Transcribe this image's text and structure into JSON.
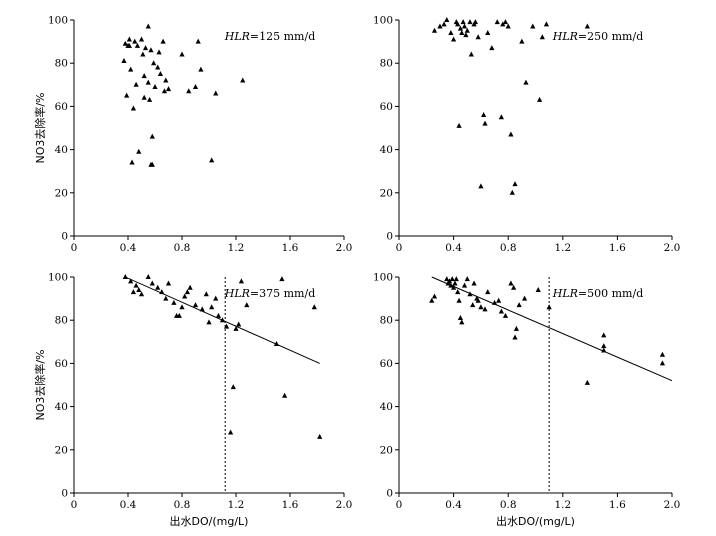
{
  "chart_data": [
    {
      "type": "scatter",
      "annotation": {
        "italic": "HLR",
        "rest": "=125 mm/d"
      },
      "ylabel": "NO3去除率/%",
      "xlabel": "",
      "xlim": [
        0,
        2.0
      ],
      "ylim": [
        0,
        100
      ],
      "x_ticks": [
        "0",
        "0.4",
        "0.8",
        "1.2",
        "1.6",
        "2.0"
      ],
      "y_ticks": [
        "0",
        "20",
        "40",
        "60",
        "80",
        "100"
      ],
      "points": [
        [
          0.37,
          81
        ],
        [
          0.38,
          89
        ],
        [
          0.39,
          65
        ],
        [
          0.4,
          88
        ],
        [
          0.41,
          91
        ],
        [
          0.41,
          88
        ],
        [
          0.42,
          77
        ],
        [
          0.43,
          34
        ],
        [
          0.44,
          59
        ],
        [
          0.45,
          90
        ],
        [
          0.46,
          70
        ],
        [
          0.47,
          88
        ],
        [
          0.48,
          39
        ],
        [
          0.5,
          91
        ],
        [
          0.51,
          84
        ],
        [
          0.52,
          74
        ],
        [
          0.52,
          64
        ],
        [
          0.53,
          87
        ],
        [
          0.55,
          97
        ],
        [
          0.55,
          71
        ],
        [
          0.56,
          63
        ],
        [
          0.57,
          86
        ],
        [
          0.57,
          33
        ],
        [
          0.58,
          46
        ],
        [
          0.58,
          33
        ],
        [
          0.59,
          80
        ],
        [
          0.6,
          69
        ],
        [
          0.62,
          78
        ],
        [
          0.63,
          85
        ],
        [
          0.64,
          75
        ],
        [
          0.66,
          90
        ],
        [
          0.67,
          67
        ],
        [
          0.68,
          72
        ],
        [
          0.7,
          68
        ],
        [
          0.8,
          84
        ],
        [
          0.85,
          67
        ],
        [
          0.9,
          69
        ],
        [
          0.92,
          90
        ],
        [
          0.94,
          77
        ],
        [
          1.02,
          35
        ],
        [
          1.05,
          66
        ],
        [
          1.25,
          72
        ]
      ],
      "trendline": null,
      "vline_x": null
    },
    {
      "type": "scatter",
      "annotation": {
        "italic": "HLR",
        "rest": "=250 mm/d"
      },
      "ylabel": "",
      "xlabel": "",
      "xlim": [
        0,
        2.0
      ],
      "ylim": [
        0,
        100
      ],
      "x_ticks": [
        "0",
        "0.4",
        "0.8",
        "1.2",
        "1.6",
        "2.0"
      ],
      "y_ticks": [
        "0",
        "20",
        "40",
        "60",
        "80",
        "100"
      ],
      "points": [
        [
          0.26,
          95
        ],
        [
          0.3,
          97
        ],
        [
          0.33,
          98
        ],
        [
          0.35,
          100
        ],
        [
          0.38,
          94
        ],
        [
          0.4,
          91
        ],
        [
          0.42,
          99
        ],
        [
          0.43,
          98
        ],
        [
          0.44,
          51
        ],
        [
          0.45,
          96
        ],
        [
          0.46,
          94
        ],
        [
          0.47,
          99
        ],
        [
          0.48,
          97
        ],
        [
          0.49,
          93
        ],
        [
          0.5,
          95
        ],
        [
          0.52,
          99
        ],
        [
          0.53,
          84
        ],
        [
          0.55,
          98
        ],
        [
          0.56,
          99
        ],
        [
          0.58,
          92
        ],
        [
          0.6,
          23
        ],
        [
          0.62,
          56
        ],
        [
          0.63,
          52
        ],
        [
          0.65,
          94
        ],
        [
          0.68,
          87
        ],
        [
          0.72,
          99
        ],
        [
          0.75,
          55
        ],
        [
          0.76,
          98
        ],
        [
          0.78,
          99
        ],
        [
          0.8,
          97
        ],
        [
          0.82,
          47
        ],
        [
          0.83,
          20
        ],
        [
          0.85,
          24
        ],
        [
          0.9,
          90
        ],
        [
          0.93,
          71
        ],
        [
          0.98,
          97
        ],
        [
          1.03,
          63
        ],
        [
          1.05,
          92
        ],
        [
          1.08,
          98
        ],
        [
          1.38,
          97
        ]
      ],
      "trendline": null,
      "vline_x": null
    },
    {
      "type": "scatter",
      "annotation": {
        "italic": "HLR",
        "rest": "=375 mm/d"
      },
      "ylabel": "NO3去除率/%",
      "xlabel": "出水DO/(mg/L)",
      "xlim": [
        0,
        2.0
      ],
      "ylim": [
        0,
        100
      ],
      "x_ticks": [
        "0",
        "0.4",
        "0.8",
        "1.2",
        "1.6",
        "2.0"
      ],
      "y_ticks": [
        "0",
        "20",
        "40",
        "60",
        "80",
        "100"
      ],
      "points": [
        [
          0.38,
          100
        ],
        [
          0.42,
          98
        ],
        [
          0.44,
          93
        ],
        [
          0.46,
          96
        ],
        [
          0.48,
          94
        ],
        [
          0.5,
          92
        ],
        [
          0.55,
          100
        ],
        [
          0.58,
          97
        ],
        [
          0.62,
          95
        ],
        [
          0.65,
          93
        ],
        [
          0.68,
          90
        ],
        [
          0.7,
          97
        ],
        [
          0.74,
          88
        ],
        [
          0.76,
          82
        ],
        [
          0.78,
          82
        ],
        [
          0.8,
          86
        ],
        [
          0.82,
          91
        ],
        [
          0.84,
          93
        ],
        [
          0.86,
          95
        ],
        [
          0.9,
          87
        ],
        [
          0.95,
          85
        ],
        [
          0.98,
          92
        ],
        [
          1.0,
          79
        ],
        [
          1.02,
          86
        ],
        [
          1.05,
          90
        ],
        [
          1.07,
          82
        ],
        [
          1.1,
          80
        ],
        [
          1.13,
          77
        ],
        [
          1.16,
          28
        ],
        [
          1.18,
          49
        ],
        [
          1.2,
          76
        ],
        [
          1.22,
          78
        ],
        [
          1.24,
          98
        ],
        [
          1.28,
          87
        ],
        [
          1.5,
          69
        ],
        [
          1.54,
          99
        ],
        [
          1.56,
          45
        ],
        [
          1.78,
          86
        ],
        [
          1.82,
          26
        ]
      ],
      "trendline": {
        "x": [
          0.38,
          1.82
        ],
        "y": [
          100,
          60
        ]
      },
      "vline_x": 1.12
    },
    {
      "type": "scatter",
      "annotation": {
        "italic": "HLR",
        "rest": "=500 mm/d"
      },
      "ylabel": "",
      "xlabel": "出水DO/(mg/L)",
      "xlim": [
        0,
        2.0
      ],
      "ylim": [
        0,
        100
      ],
      "x_ticks": [
        "0",
        "0.4",
        "0.8",
        "1.2",
        "1.6",
        "2.0"
      ],
      "y_ticks": [
        "0",
        "20",
        "40",
        "60",
        "80",
        "100"
      ],
      "points": [
        [
          0.24,
          89
        ],
        [
          0.26,
          91
        ],
        [
          0.35,
          99
        ],
        [
          0.36,
          97
        ],
        [
          0.37,
          98
        ],
        [
          0.38,
          96
        ],
        [
          0.39,
          99
        ],
        [
          0.4,
          95
        ],
        [
          0.41,
          97
        ],
        [
          0.42,
          99
        ],
        [
          0.43,
          93
        ],
        [
          0.44,
          89
        ],
        [
          0.45,
          81
        ],
        [
          0.46,
          79
        ],
        [
          0.48,
          96
        ],
        [
          0.5,
          99
        ],
        [
          0.52,
          92
        ],
        [
          0.54,
          87
        ],
        [
          0.55,
          97
        ],
        [
          0.57,
          90
        ],
        [
          0.58,
          89
        ],
        [
          0.6,
          86
        ],
        [
          0.63,
          85
        ],
        [
          0.65,
          93
        ],
        [
          0.7,
          88
        ],
        [
          0.73,
          89
        ],
        [
          0.75,
          84
        ],
        [
          0.78,
          82
        ],
        [
          0.82,
          97
        ],
        [
          0.84,
          95
        ],
        [
          0.85,
          72
        ],
        [
          0.86,
          76
        ],
        [
          0.88,
          87
        ],
        [
          0.92,
          90
        ],
        [
          1.02,
          94
        ],
        [
          1.1,
          86
        ],
        [
          1.38,
          51
        ],
        [
          1.5,
          73
        ],
        [
          1.5,
          68
        ],
        [
          1.5,
          66
        ],
        [
          1.93,
          64
        ],
        [
          1.93,
          60
        ]
      ],
      "trendline": {
        "x": [
          0.24,
          2.0
        ],
        "y": [
          100,
          52
        ]
      },
      "vline_x": 1.1
    }
  ]
}
